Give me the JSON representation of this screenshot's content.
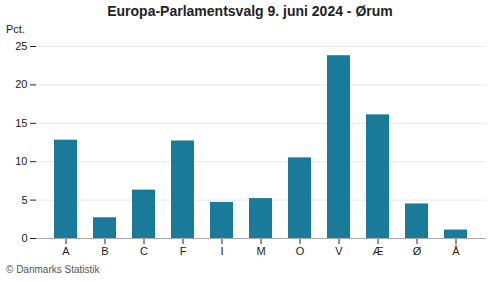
{
  "chart_data": {
    "type": "bar",
    "title": "Europa-Parlamentsvalg 9. juni 2024 - Ørum",
    "categories": [
      "A",
      "B",
      "C",
      "F",
      "I",
      "M",
      "O",
      "V",
      "Æ",
      "Ø",
      "Å"
    ],
    "values": [
      12.8,
      2.7,
      6.3,
      12.7,
      4.7,
      5.2,
      10.5,
      23.8,
      16.1,
      4.5,
      1.1
    ],
    "color": "#1a7a9a",
    "ylabel": "Pct.",
    "caption": "© Danmarks Statistik",
    "ylim": [
      0,
      25
    ],
    "yticks": [
      0,
      5,
      10,
      15,
      20,
      25
    ],
    "grid": true
  }
}
